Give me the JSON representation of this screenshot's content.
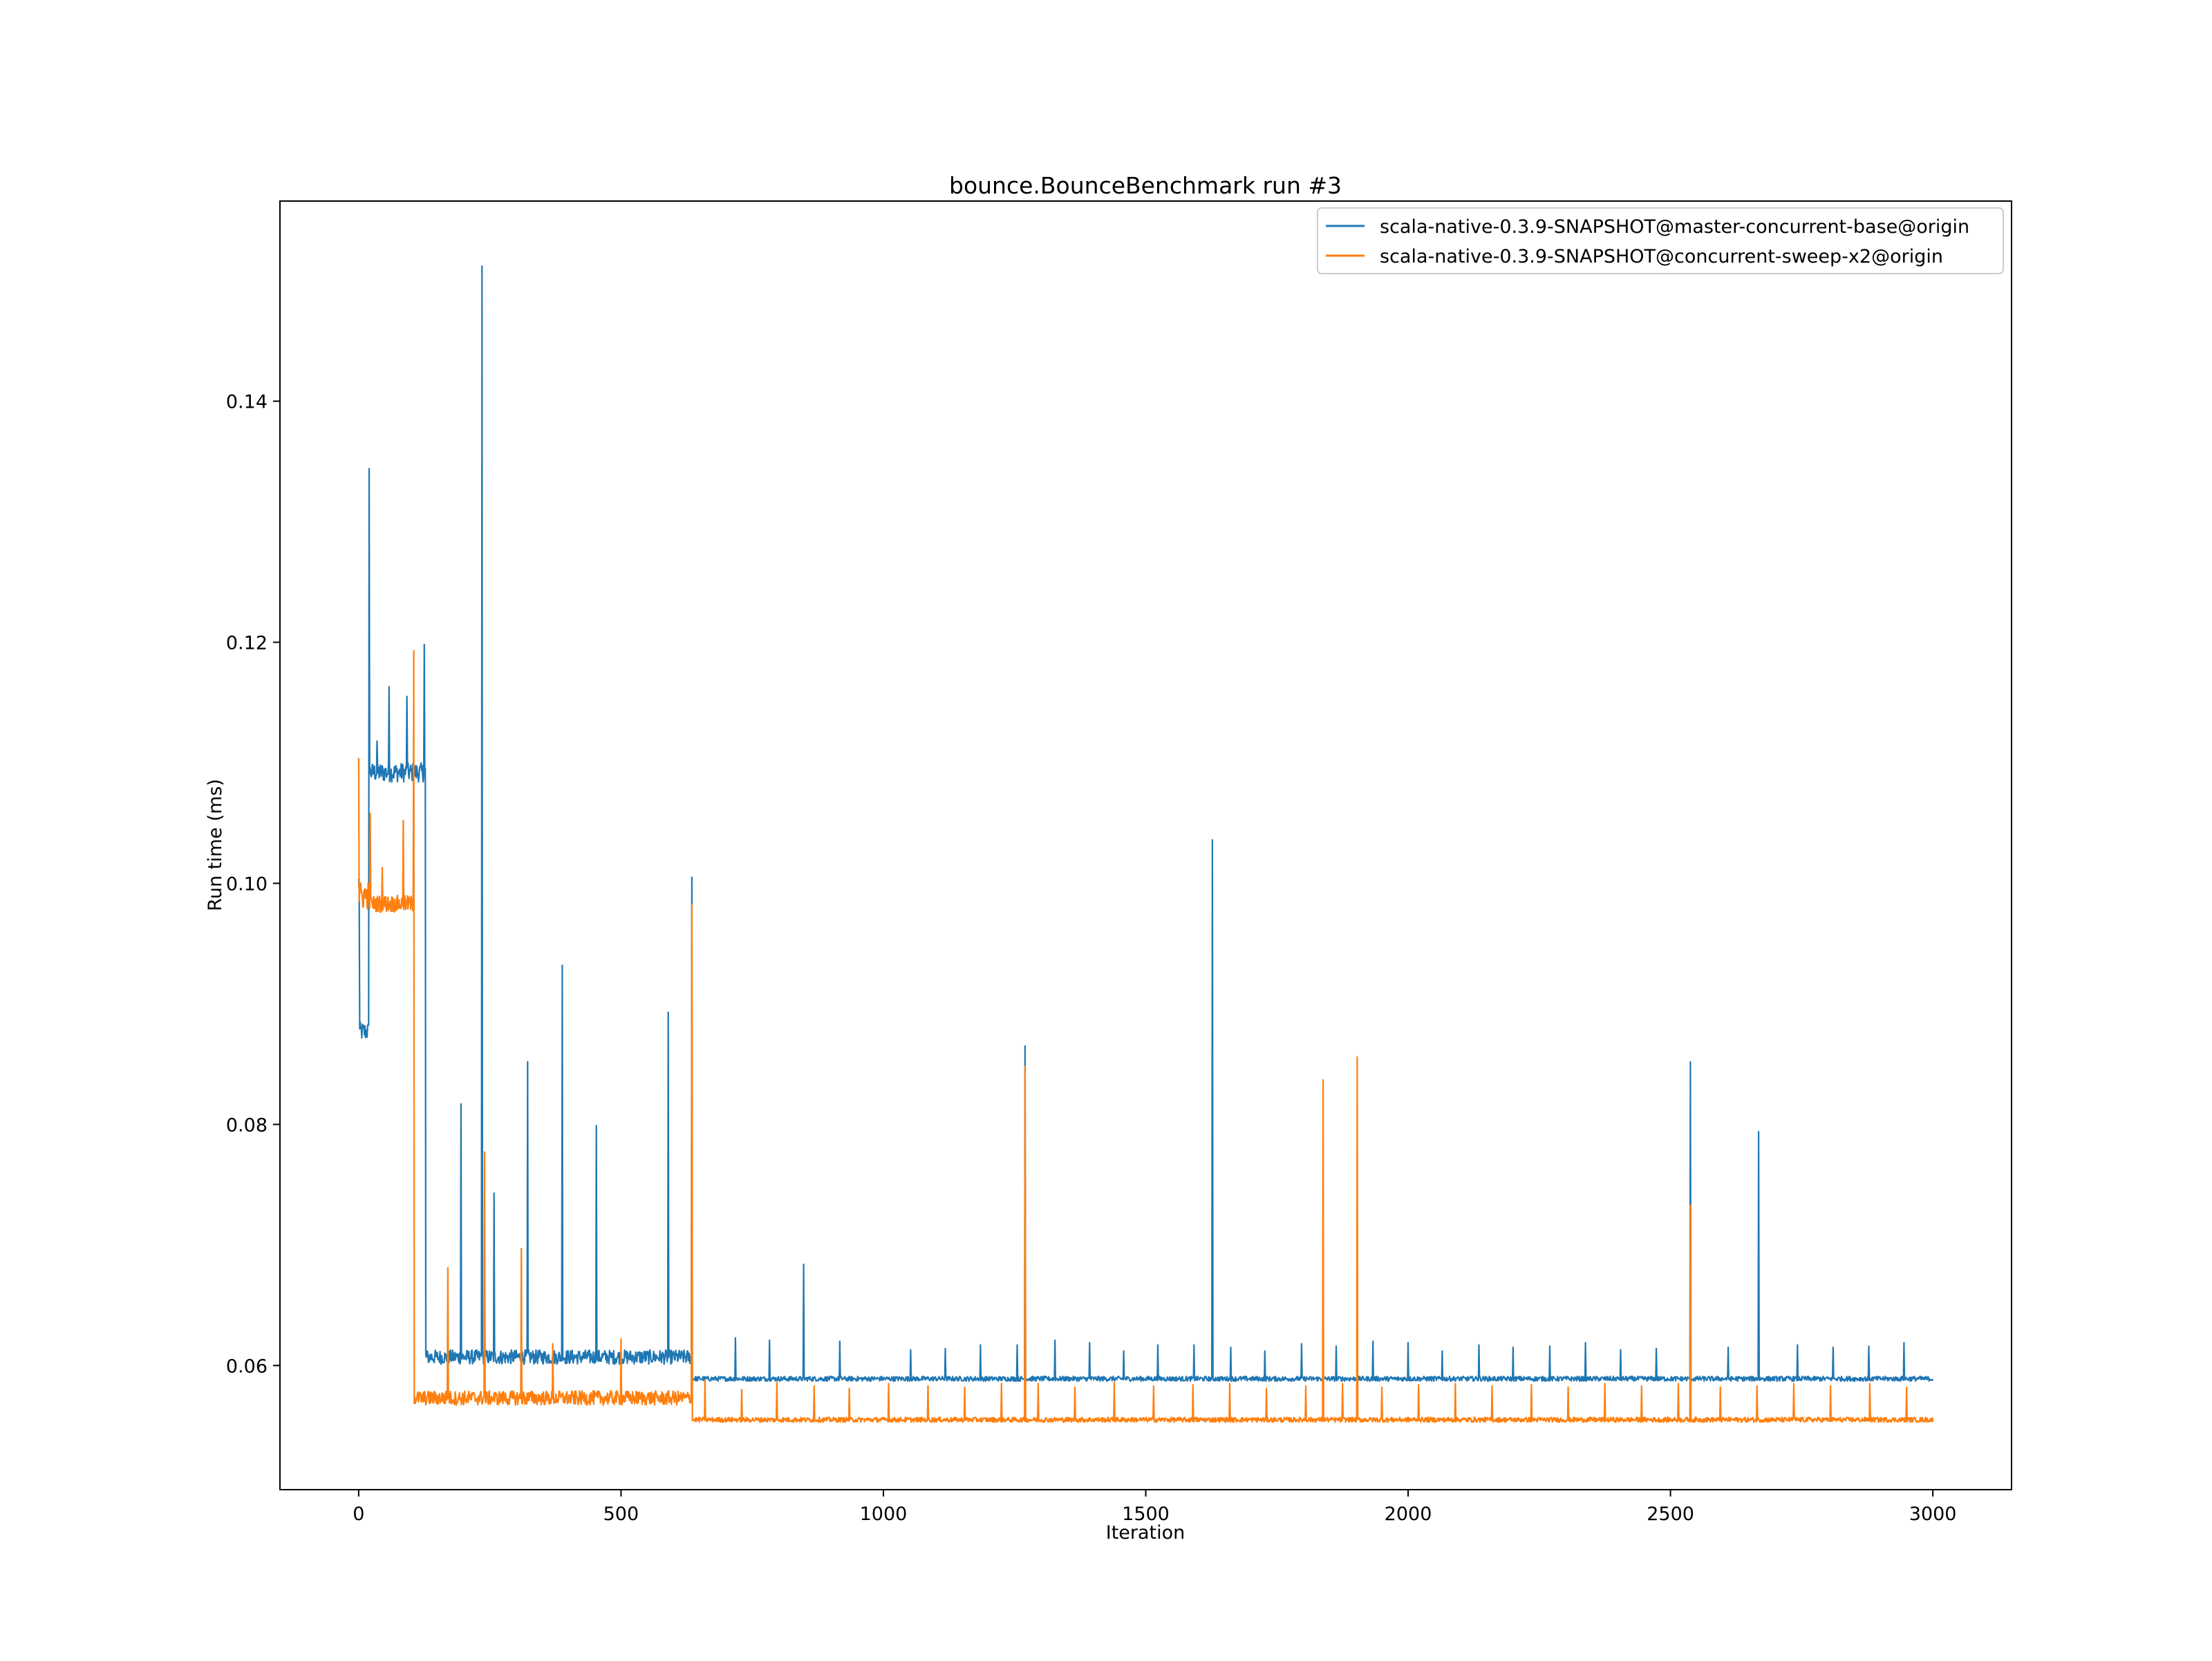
{
  "chart_data": {
    "type": "line",
    "title": "bounce.BounceBenchmark run #3",
    "xlabel": "Iteration",
    "ylabel": "Run time (ms)",
    "xlim": [
      -150,
      3150
    ],
    "ylim": [
      0.0497,
      0.1566
    ],
    "x_ticks": [
      0,
      500,
      1000,
      1500,
      2000,
      2500,
      3000
    ],
    "x_tick_labels": [
      "0",
      "500",
      "1000",
      "1500",
      "2000",
      "2500",
      "3000"
    ],
    "y_ticks": [
      0.06,
      0.08,
      0.1,
      0.12,
      0.14
    ],
    "y_tick_labels": [
      "0.06",
      "0.08",
      "0.10",
      "0.12",
      "0.14"
    ],
    "grid": false,
    "legend_position": "top-right",
    "series": [
      {
        "name": "scala-native-0.3.9-SNAPSHOT@master-concurrent-base@origin",
        "color": "#1f77b4",
        "segments": [
          {
            "x_start": 0,
            "x_end": 2,
            "level": 0.0999,
            "noise": 0.0015
          },
          {
            "x_start": 2,
            "x_end": 20,
            "level": 0.0877,
            "noise": 0.0008
          },
          {
            "x_start": 20,
            "x_end": 128,
            "level": 0.1092,
            "noise": 0.0008
          },
          {
            "x_start": 128,
            "x_end": 635,
            "level": 0.0607,
            "noise": 0.0006
          },
          {
            "x_start": 635,
            "x_end": 3000,
            "level": 0.0589,
            "noise": 0.0002
          }
        ],
        "spikes": [
          {
            "x": 20,
            "y": 0.1344
          },
          {
            "x": 35,
            "y": 0.1118
          },
          {
            "x": 58,
            "y": 0.1163
          },
          {
            "x": 92,
            "y": 0.1155
          },
          {
            "x": 125,
            "y": 0.1198
          },
          {
            "x": 195,
            "y": 0.0817
          },
          {
            "x": 235,
            "y": 0.1512
          },
          {
            "x": 258,
            "y": 0.0743
          },
          {
            "x": 322,
            "y": 0.0852
          },
          {
            "x": 388,
            "y": 0.0932
          },
          {
            "x": 453,
            "y": 0.0799
          },
          {
            "x": 590,
            "y": 0.0893
          },
          {
            "x": 635,
            "y": 0.1005
          },
          {
            "x": 718,
            "y": 0.0623
          },
          {
            "x": 783,
            "y": 0.0621
          },
          {
            "x": 848,
            "y": 0.0684
          },
          {
            "x": 917,
            "y": 0.062
          },
          {
            "x": 1052,
            "y": 0.0613
          },
          {
            "x": 1118,
            "y": 0.0614
          },
          {
            "x": 1185,
            "y": 0.0617
          },
          {
            "x": 1255,
            "y": 0.0617
          },
          {
            "x": 1270,
            "y": 0.0865
          },
          {
            "x": 1327,
            "y": 0.0621
          },
          {
            "x": 1393,
            "y": 0.0619
          },
          {
            "x": 1458,
            "y": 0.0612
          },
          {
            "x": 1523,
            "y": 0.0617
          },
          {
            "x": 1592,
            "y": 0.0617
          },
          {
            "x": 1627,
            "y": 0.1036
          },
          {
            "x": 1662,
            "y": 0.0615
          },
          {
            "x": 1727,
            "y": 0.0612
          },
          {
            "x": 1797,
            "y": 0.0618
          },
          {
            "x": 1863,
            "y": 0.0616
          },
          {
            "x": 1933,
            "y": 0.062
          },
          {
            "x": 2000,
            "y": 0.0619
          },
          {
            "x": 2065,
            "y": 0.0612
          },
          {
            "x": 2135,
            "y": 0.0617
          },
          {
            "x": 2200,
            "y": 0.0615
          },
          {
            "x": 2270,
            "y": 0.0616
          },
          {
            "x": 2338,
            "y": 0.0619
          },
          {
            "x": 2405,
            "y": 0.0613
          },
          {
            "x": 2473,
            "y": 0.0614
          },
          {
            "x": 2538,
            "y": 0.0852
          },
          {
            "x": 2610,
            "y": 0.0615
          },
          {
            "x": 2668,
            "y": 0.0794
          },
          {
            "x": 2742,
            "y": 0.0617
          },
          {
            "x": 2810,
            "y": 0.0615
          },
          {
            "x": 2878,
            "y": 0.0616
          },
          {
            "x": 2945,
            "y": 0.0619
          }
        ]
      },
      {
        "name": "scala-native-0.3.9-SNAPSHOT@concurrent-sweep-x2@origin",
        "color": "#ff7f0e",
        "segments": [
          {
            "x_start": 0,
            "x_end": 20,
            "level": 0.099,
            "noise": 0.0012
          },
          {
            "x_start": 20,
            "x_end": 105,
            "level": 0.0983,
            "noise": 0.0007
          },
          {
            "x_start": 105,
            "x_end": 635,
            "level": 0.0573,
            "noise": 0.0006
          },
          {
            "x_start": 635,
            "x_end": 3000,
            "level": 0.0555,
            "noise": 0.0002
          }
        ],
        "spikes": [
          {
            "x": 0,
            "y": 0.1104
          },
          {
            "x": 22,
            "y": 0.1058
          },
          {
            "x": 45,
            "y": 0.1013
          },
          {
            "x": 85,
            "y": 0.1052
          },
          {
            "x": 105,
            "y": 0.1193
          },
          {
            "x": 170,
            "y": 0.0681
          },
          {
            "x": 240,
            "y": 0.0777
          },
          {
            "x": 310,
            "y": 0.0697
          },
          {
            "x": 370,
            "y": 0.0618
          },
          {
            "x": 500,
            "y": 0.0622
          },
          {
            "x": 635,
            "y": 0.0982
          },
          {
            "x": 660,
            "y": 0.0588
          },
          {
            "x": 730,
            "y": 0.058
          },
          {
            "x": 797,
            "y": 0.0586
          },
          {
            "x": 868,
            "y": 0.0583
          },
          {
            "x": 935,
            "y": 0.0581
          },
          {
            "x": 1010,
            "y": 0.0585
          },
          {
            "x": 1085,
            "y": 0.0583
          },
          {
            "x": 1155,
            "y": 0.0582
          },
          {
            "x": 1225,
            "y": 0.0585
          },
          {
            "x": 1270,
            "y": 0.0848
          },
          {
            "x": 1295,
            "y": 0.0585
          },
          {
            "x": 1365,
            "y": 0.0582
          },
          {
            "x": 1440,
            "y": 0.0586
          },
          {
            "x": 1515,
            "y": 0.0583
          },
          {
            "x": 1590,
            "y": 0.0584
          },
          {
            "x": 1660,
            "y": 0.0585
          },
          {
            "x": 1730,
            "y": 0.0581
          },
          {
            "x": 1805,
            "y": 0.0583
          },
          {
            "x": 1838,
            "y": 0.0837
          },
          {
            "x": 1875,
            "y": 0.0585
          },
          {
            "x": 1903,
            "y": 0.0856
          },
          {
            "x": 1950,
            "y": 0.0582
          },
          {
            "x": 2020,
            "y": 0.0584
          },
          {
            "x": 2090,
            "y": 0.0585
          },
          {
            "x": 2160,
            "y": 0.0583
          },
          {
            "x": 2235,
            "y": 0.0584
          },
          {
            "x": 2305,
            "y": 0.0582
          },
          {
            "x": 2375,
            "y": 0.0585
          },
          {
            "x": 2445,
            "y": 0.0583
          },
          {
            "x": 2515,
            "y": 0.0585
          },
          {
            "x": 2538,
            "y": 0.0733
          },
          {
            "x": 2595,
            "y": 0.0582
          },
          {
            "x": 2665,
            "y": 0.0583
          },
          {
            "x": 2735,
            "y": 0.0585
          },
          {
            "x": 2805,
            "y": 0.0583
          },
          {
            "x": 2880,
            "y": 0.0585
          },
          {
            "x": 2950,
            "y": 0.0582
          }
        ]
      }
    ]
  }
}
